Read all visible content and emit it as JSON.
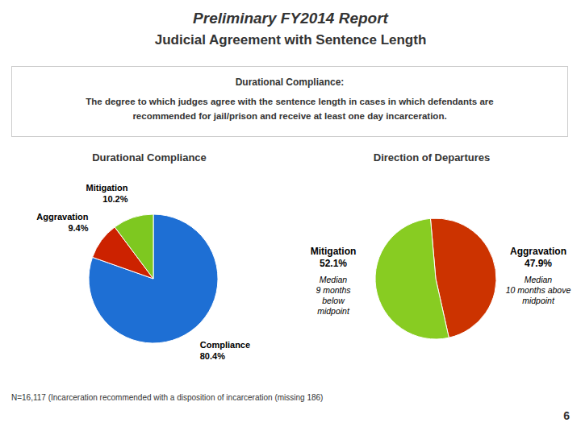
{
  "title": "Preliminary FY2014 Report\nJudicial Agreement with Sentence Length",
  "subtitle": "Durational Compliance:",
  "annotations": [
    "The degree to which judges agree with the sentence length in cases in which defendants are\nrecommended for jail/prison and receive at least one day incarceration.",
    "N=16,117  (Incarceration recommended  with a disposition of incarceration (missing 186)",
    "6"
  ],
  "chart_data": [
    {
      "type": "pie",
      "title": "Durational Compliance",
      "categories": [
        "Compliance",
        "Aggravation",
        "Mitigation"
      ],
      "values": [
        80.4,
        9.4,
        10.2
      ],
      "value_labels": [
        "80.4%",
        "9.4%",
        "10.2%"
      ],
      "colors": [
        "#1e6fd4",
        "#cc2200",
        "#7ec820"
      ],
      "data_labels": true
    },
    {
      "type": "pie",
      "title": "Direction of Departures",
      "categories": [
        "Aggravation",
        "Mitigation"
      ],
      "values": [
        47.9,
        52.1
      ],
      "value_labels": [
        "47.9%",
        "52.1%"
      ],
      "colors": [
        "#cc3300",
        "#88cc22"
      ],
      "data_labels": true,
      "annotations": [
        "Median\n10 months above\nmidpoint",
        "Median\n9 months\nbelow\nmidpoint"
      ]
    }
  ]
}
